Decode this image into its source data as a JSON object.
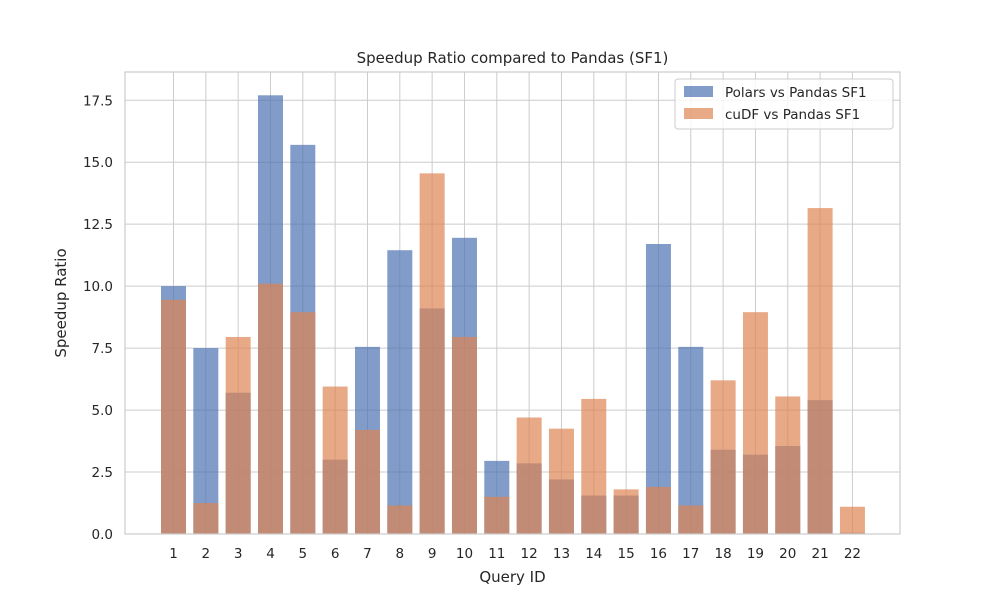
{
  "chart_data": {
    "type": "bar",
    "title": "Speedup Ratio compared to Pandas (SF1)",
    "xlabel": "Query ID",
    "ylabel": "Speedup Ratio",
    "categories": [
      "1",
      "2",
      "3",
      "4",
      "5",
      "6",
      "7",
      "8",
      "9",
      "10",
      "11",
      "12",
      "13",
      "14",
      "15",
      "16",
      "17",
      "18",
      "19",
      "20",
      "21",
      "22"
    ],
    "series": [
      {
        "name": "Polars vs Pandas SF1",
        "color": "#4c72b0",
        "values": [
          10.0,
          7.5,
          5.7,
          17.7,
          15.7,
          3.0,
          7.55,
          11.45,
          9.1,
          11.95,
          2.95,
          2.85,
          2.2,
          1.55,
          1.55,
          11.7,
          7.55,
          3.4,
          3.2,
          3.55,
          5.4,
          0.05
        ]
      },
      {
        "name": "cuDF vs Pandas SF1",
        "color": "#dd8452",
        "values": [
          9.45,
          1.25,
          7.95,
          10.1,
          8.95,
          5.95,
          4.2,
          1.15,
          14.55,
          7.95,
          1.5,
          4.7,
          4.25,
          5.45,
          1.8,
          1.9,
          1.15,
          6.2,
          8.95,
          5.55,
          13.15,
          1.1
        ]
      }
    ],
    "ylim": [
      0,
      18.64
    ],
    "yticks": [
      0.0,
      2.5,
      5.0,
      7.5,
      10.0,
      12.5,
      15.0,
      17.5
    ],
    "ytick_labels": [
      "0.0",
      "2.5",
      "5.0",
      "7.5",
      "10.0",
      "12.5",
      "15.0",
      "17.5"
    ],
    "bar_alpha": 0.7,
    "grid": true,
    "legend_position": "upper right"
  }
}
